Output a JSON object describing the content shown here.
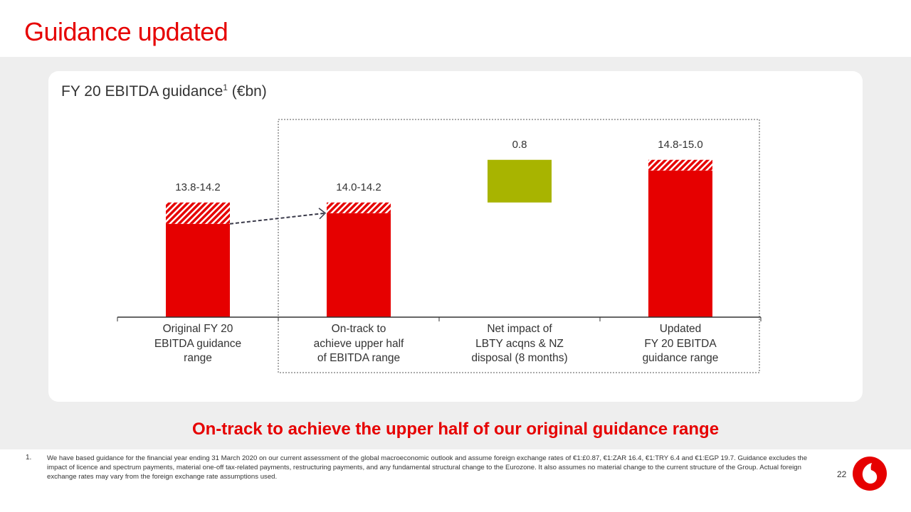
{
  "title": "Guidance updated",
  "chart_data": {
    "type": "bar",
    "subtype": "waterfall-range",
    "title": "FY 20 EBITDA guidance",
    "title_superscript": "1",
    "title_unit": "(€bn)",
    "ylim": [
      12.05,
      15.4
    ],
    "grid": false,
    "categories": [
      [
        "Original FY 20",
        "EBITDA guidance",
        "range"
      ],
      [
        "On-track to",
        "achieve upper half",
        "of EBITDA range"
      ],
      [
        "Net impact of",
        "LBTY acqns & NZ",
        "disposal (8 months)"
      ],
      [
        "Updated",
        "FY 20 EBITDA",
        "guidance range"
      ]
    ],
    "bars": [
      {
        "low": 13.8,
        "high": 14.2,
        "base": null,
        "label": "13.8-14.2",
        "kind": "range"
      },
      {
        "low": 14.0,
        "high": 14.2,
        "base": null,
        "label": "14.0-14.2",
        "kind": "range"
      },
      {
        "low": 14.2,
        "high": 15.0,
        "base": 14.2,
        "label": "0.8",
        "kind": "increment"
      },
      {
        "low": 14.8,
        "high": 15.0,
        "base": null,
        "label": "14.8-15.0",
        "kind": "range"
      }
    ],
    "colors": {
      "range": "#e60000",
      "increment": "#a8b400",
      "hatch": "#ffffff"
    }
  },
  "headline": "On-track to achieve the upper half of our original guidance range",
  "footnote": {
    "number": "1.",
    "text": "We have based guidance for the financial year ending 31 March 2020 on our current assessment of the global macroeconomic outlook and assume foreign exchange rates of €1:£0.87, €1:ZAR 16.4, €1:TRY 6.4 and €1:EGP 19.7. Guidance excludes the impact of licence and spectrum payments, material one-off tax-related payments, restructuring payments, and any fundamental structural change to the Eurozone. It also assumes no material change to the current structure of the Group. Actual foreign exchange rates may vary from the foreign exchange rate assumptions used."
  },
  "page_number": "22"
}
